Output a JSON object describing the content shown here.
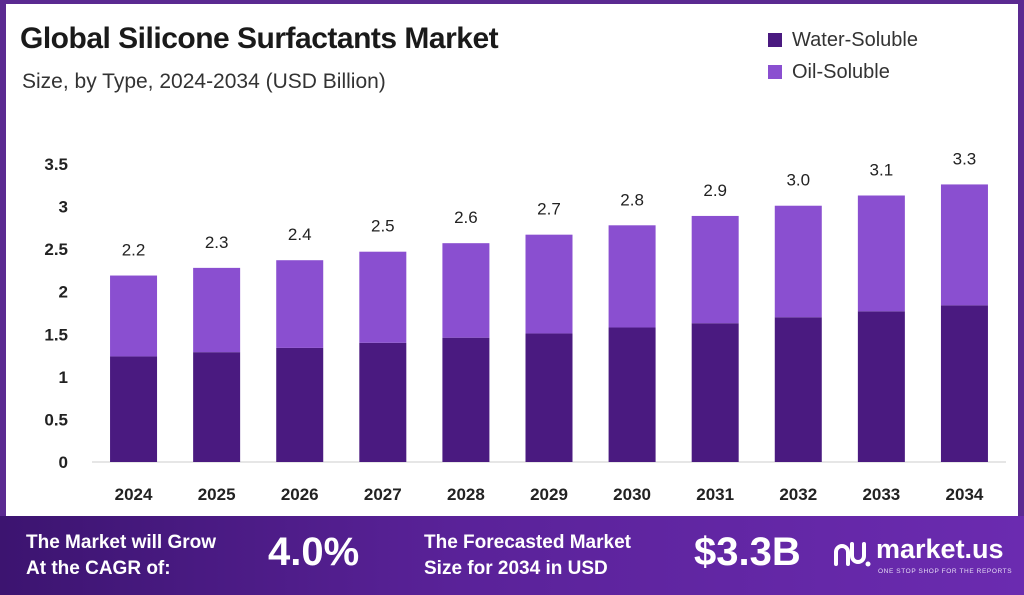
{
  "chart_data": {
    "type": "bar",
    "stacked": true,
    "title": "Global Silicone Surfactants Market",
    "subtitle": "Size, by Type, 2024-2034 (USD Billion)",
    "categories": [
      "2024",
      "2025",
      "2026",
      "2027",
      "2028",
      "2029",
      "2030",
      "2031",
      "2032",
      "2033",
      "2034"
    ],
    "series": [
      {
        "name": "Water-Soluble",
        "color": "#4a1a80",
        "values": [
          1.24,
          1.29,
          1.34,
          1.4,
          1.46,
          1.51,
          1.58,
          1.63,
          1.7,
          1.77,
          1.84
        ]
      },
      {
        "name": "Oil-Soluble",
        "color": "#8a4fd0",
        "values": [
          0.95,
          0.99,
          1.03,
          1.07,
          1.11,
          1.16,
          1.2,
          1.26,
          1.31,
          1.36,
          1.42
        ]
      }
    ],
    "totals_labels": [
      "2.2",
      "2.3",
      "2.4",
      "2.5",
      "2.6",
      "2.7",
      "2.8",
      "2.9",
      "3.0",
      "3.1",
      "3.3"
    ],
    "yticks": [
      "0",
      "0.5",
      "1",
      "1.5",
      "2",
      "2.5",
      "3",
      "3.5"
    ],
    "ylim": [
      0,
      3.5
    ],
    "legend_position": "top-right"
  },
  "footer": {
    "cagr_label_line1": "The Market will Grow",
    "cagr_label_line2": "At the CAGR of:",
    "cagr_value": "4.0%",
    "forecast_label_line1": "The Forecasted Market",
    "forecast_label_line2": "Size for 2034 in USD",
    "forecast_value": "$3.3B",
    "brand_name": "market.us",
    "brand_tagline": "ONE STOP SHOP FOR THE REPORTS"
  }
}
